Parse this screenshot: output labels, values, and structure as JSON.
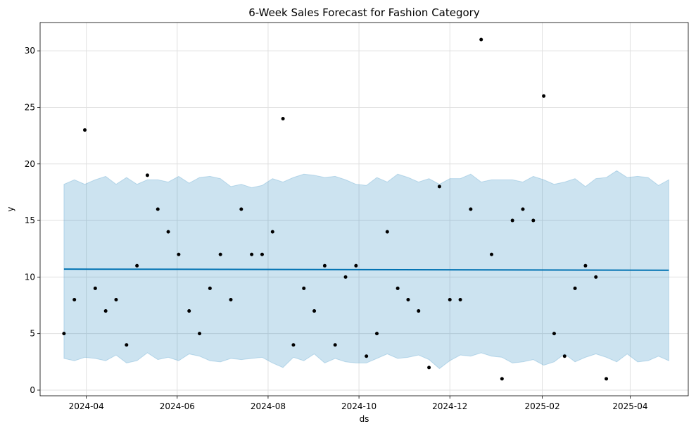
{
  "chart_data": {
    "type": "scatter",
    "title": "6-Week Sales Forecast for Fashion Category",
    "xlabel": "ds",
    "ylabel": "y",
    "grid": true,
    "x_axis": {
      "type": "date",
      "range": [
        "2024-03-01",
        "2025-05-10"
      ],
      "ticks": [
        {
          "date": "2024-04-01",
          "label": "2024-04"
        },
        {
          "date": "2024-06-01",
          "label": "2024-06"
        },
        {
          "date": "2024-08-01",
          "label": "2024-08"
        },
        {
          "date": "2024-10-01",
          "label": "2024-10"
        },
        {
          "date": "2024-12-01",
          "label": "2024-12"
        },
        {
          "date": "2025-02-01",
          "label": "2025-02"
        },
        {
          "date": "2025-04-01",
          "label": "2025-04"
        }
      ]
    },
    "y_axis": {
      "range": [
        -0.5,
        32.5
      ],
      "ticks": [
        0,
        5,
        10,
        15,
        20,
        25,
        30
      ]
    },
    "colors": {
      "actual_points": "#000000",
      "forecast_line": "#0072b2",
      "uncertainty_fill": "#0072b2",
      "grid": "#e0e0e0"
    },
    "series": [
      {
        "kind": "actual",
        "points": [
          [
            "2024-03-17",
            5
          ],
          [
            "2024-03-24",
            8
          ],
          [
            "2024-03-31",
            23
          ],
          [
            "2024-04-07",
            9
          ],
          [
            "2024-04-14",
            7
          ],
          [
            "2024-04-21",
            8
          ],
          [
            "2024-04-28",
            4
          ],
          [
            "2024-05-05",
            11
          ],
          [
            "2024-05-12",
            19
          ],
          [
            "2024-05-19",
            16
          ],
          [
            "2024-05-26",
            14
          ],
          [
            "2024-06-02",
            12
          ],
          [
            "2024-06-09",
            7
          ],
          [
            "2024-06-16",
            5
          ],
          [
            "2024-06-23",
            9
          ],
          [
            "2024-06-30",
            12
          ],
          [
            "2024-07-07",
            8
          ],
          [
            "2024-07-14",
            16
          ],
          [
            "2024-07-21",
            12
          ],
          [
            "2024-07-28",
            12
          ],
          [
            "2024-08-04",
            14
          ],
          [
            "2024-08-11",
            24
          ],
          [
            "2024-08-18",
            4
          ],
          [
            "2024-08-25",
            9
          ],
          [
            "2024-09-01",
            7
          ],
          [
            "2024-09-08",
            11
          ],
          [
            "2024-09-15",
            4
          ],
          [
            "2024-09-22",
            10
          ],
          [
            "2024-09-29",
            11
          ],
          [
            "2024-10-06",
            3
          ],
          [
            "2024-10-13",
            5
          ],
          [
            "2024-10-20",
            14
          ],
          [
            "2024-10-27",
            9
          ],
          [
            "2024-11-03",
            8
          ],
          [
            "2024-11-10",
            7
          ],
          [
            "2024-11-17",
            2
          ],
          [
            "2024-11-24",
            18
          ],
          [
            "2024-12-01",
            8
          ],
          [
            "2024-12-08",
            8
          ],
          [
            "2024-12-15",
            16
          ],
          [
            "2024-12-22",
            31
          ],
          [
            "2024-12-29",
            12
          ],
          [
            "2025-01-05",
            1
          ],
          [
            "2025-01-12",
            15
          ],
          [
            "2025-01-19",
            16
          ],
          [
            "2025-01-26",
            15
          ],
          [
            "2025-02-02",
            26
          ],
          [
            "2025-02-09",
            5
          ],
          [
            "2025-02-16",
            3
          ],
          [
            "2025-02-23",
            9
          ],
          [
            "2025-03-02",
            11
          ],
          [
            "2025-03-09",
            10
          ],
          [
            "2025-03-16",
            1
          ]
        ]
      },
      {
        "kind": "forecast",
        "points": [
          [
            "2024-03-17",
            10.7
          ],
          [
            "2025-04-27",
            10.6
          ]
        ]
      },
      {
        "kind": "uncertainty_band",
        "upper": [
          [
            "2024-03-17",
            18.2
          ],
          [
            "2024-03-24",
            18.6
          ],
          [
            "2024-03-31",
            18.2
          ],
          [
            "2024-04-07",
            18.6
          ],
          [
            "2024-04-14",
            18.9
          ],
          [
            "2024-04-21",
            18.2
          ],
          [
            "2024-04-28",
            18.8
          ],
          [
            "2024-05-05",
            18.2
          ],
          [
            "2024-05-12",
            18.6
          ],
          [
            "2024-05-19",
            18.6
          ],
          [
            "2024-05-26",
            18.4
          ],
          [
            "2024-06-02",
            18.9
          ],
          [
            "2024-06-09",
            18.3
          ],
          [
            "2024-06-16",
            18.8
          ],
          [
            "2024-06-23",
            18.9
          ],
          [
            "2024-06-30",
            18.7
          ],
          [
            "2024-07-07",
            18.0
          ],
          [
            "2024-07-14",
            18.2
          ],
          [
            "2024-07-21",
            17.9
          ],
          [
            "2024-07-28",
            18.1
          ],
          [
            "2024-08-04",
            18.7
          ],
          [
            "2024-08-11",
            18.4
          ],
          [
            "2024-08-18",
            18.8
          ],
          [
            "2024-08-25",
            19.1
          ],
          [
            "2024-09-01",
            19.0
          ],
          [
            "2024-09-08",
            18.8
          ],
          [
            "2024-09-15",
            18.9
          ],
          [
            "2024-09-22",
            18.6
          ],
          [
            "2024-09-29",
            18.2
          ],
          [
            "2024-10-06",
            18.1
          ],
          [
            "2024-10-13",
            18.8
          ],
          [
            "2024-10-20",
            18.4
          ],
          [
            "2024-10-27",
            19.1
          ],
          [
            "2024-11-03",
            18.8
          ],
          [
            "2024-11-10",
            18.4
          ],
          [
            "2024-11-17",
            18.7
          ],
          [
            "2024-11-24",
            18.2
          ],
          [
            "2024-12-01",
            18.7
          ],
          [
            "2024-12-08",
            18.7
          ],
          [
            "2024-12-15",
            19.1
          ],
          [
            "2024-12-22",
            18.4
          ],
          [
            "2024-12-29",
            18.6
          ],
          [
            "2025-01-05",
            18.6
          ],
          [
            "2025-01-12",
            18.6
          ],
          [
            "2025-01-19",
            18.4
          ],
          [
            "2025-01-26",
            18.9
          ],
          [
            "2025-02-02",
            18.6
          ],
          [
            "2025-02-09",
            18.2
          ],
          [
            "2025-02-16",
            18.4
          ],
          [
            "2025-02-23",
            18.7
          ],
          [
            "2025-03-02",
            18.0
          ],
          [
            "2025-03-09",
            18.7
          ],
          [
            "2025-03-16",
            18.8
          ],
          [
            "2025-03-23",
            19.4
          ],
          [
            "2025-03-30",
            18.8
          ],
          [
            "2025-04-06",
            18.9
          ],
          [
            "2025-04-13",
            18.8
          ],
          [
            "2025-04-20",
            18.1
          ],
          [
            "2025-04-27",
            18.6
          ]
        ],
        "lower": [
          [
            "2024-03-17",
            2.8
          ],
          [
            "2024-03-24",
            2.6
          ],
          [
            "2024-03-31",
            2.9
          ],
          [
            "2024-04-07",
            2.8
          ],
          [
            "2024-04-14",
            2.6
          ],
          [
            "2024-04-21",
            3.1
          ],
          [
            "2024-04-28",
            2.4
          ],
          [
            "2024-05-05",
            2.6
          ],
          [
            "2024-05-12",
            3.3
          ],
          [
            "2024-05-19",
            2.7
          ],
          [
            "2024-05-26",
            2.9
          ],
          [
            "2024-06-02",
            2.6
          ],
          [
            "2024-06-09",
            3.2
          ],
          [
            "2024-06-16",
            3.0
          ],
          [
            "2024-06-23",
            2.6
          ],
          [
            "2024-06-30",
            2.5
          ],
          [
            "2024-07-07",
            2.8
          ],
          [
            "2024-07-14",
            2.7
          ],
          [
            "2024-07-21",
            2.8
          ],
          [
            "2024-07-28",
            2.9
          ],
          [
            "2024-08-04",
            2.4
          ],
          [
            "2024-08-11",
            2.0
          ],
          [
            "2024-08-18",
            2.9
          ],
          [
            "2024-08-25",
            2.6
          ],
          [
            "2024-09-01",
            3.2
          ],
          [
            "2024-09-08",
            2.4
          ],
          [
            "2024-09-15",
            2.8
          ],
          [
            "2024-09-22",
            2.5
          ],
          [
            "2024-09-29",
            2.4
          ],
          [
            "2024-10-06",
            2.4
          ],
          [
            "2024-10-13",
            2.8
          ],
          [
            "2024-10-20",
            3.2
          ],
          [
            "2024-10-27",
            2.8
          ],
          [
            "2024-11-03",
            2.9
          ],
          [
            "2024-11-10",
            3.1
          ],
          [
            "2024-11-17",
            2.7
          ],
          [
            "2024-11-24",
            1.9
          ],
          [
            "2024-12-01",
            2.6
          ],
          [
            "2024-12-08",
            3.1
          ],
          [
            "2024-12-15",
            3.0
          ],
          [
            "2024-12-22",
            3.3
          ],
          [
            "2024-12-29",
            3.0
          ],
          [
            "2025-01-05",
            2.9
          ],
          [
            "2025-01-12",
            2.4
          ],
          [
            "2025-01-19",
            2.5
          ],
          [
            "2025-01-26",
            2.7
          ],
          [
            "2025-02-02",
            2.2
          ],
          [
            "2025-02-09",
            2.5
          ],
          [
            "2025-02-16",
            3.2
          ],
          [
            "2025-02-23",
            2.5
          ],
          [
            "2025-03-02",
            2.9
          ],
          [
            "2025-03-09",
            3.2
          ],
          [
            "2025-03-16",
            2.9
          ],
          [
            "2025-03-23",
            2.5
          ],
          [
            "2025-03-30",
            3.2
          ],
          [
            "2025-04-06",
            2.5
          ],
          [
            "2025-04-13",
            2.6
          ],
          [
            "2025-04-20",
            3.0
          ],
          [
            "2025-04-27",
            2.6
          ]
        ]
      }
    ]
  }
}
